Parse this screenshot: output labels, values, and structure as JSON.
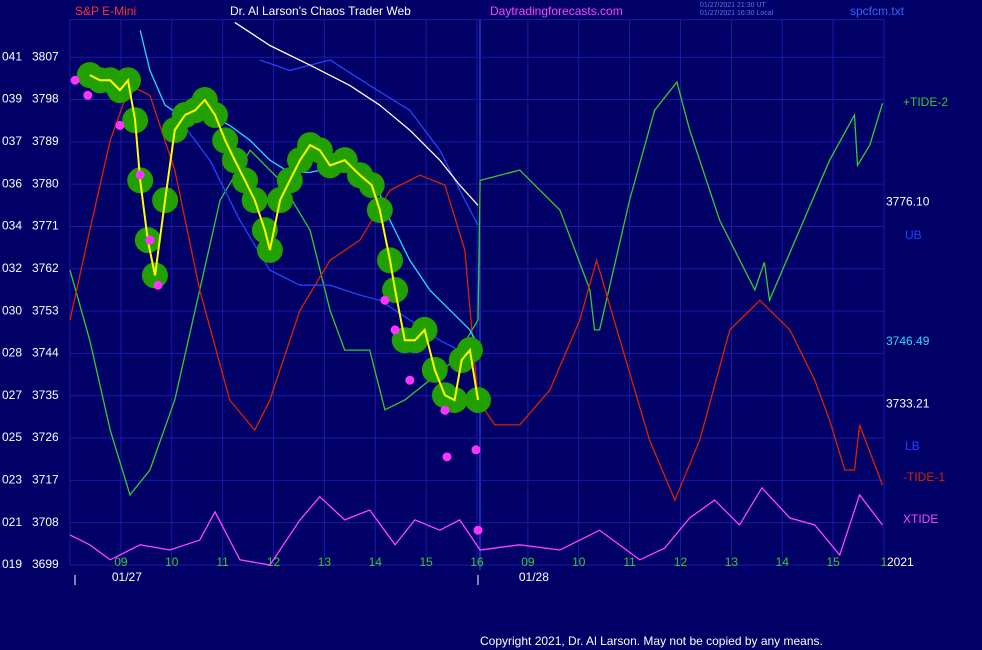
{
  "chart_data": {
    "type": "line",
    "header": {
      "left": "S&P E-Mini",
      "center": "Dr. Al Larson's Chaos Trader Web",
      "site": "Daytradingforecasts.com",
      "stamp1": "01/27/2021 21:30 UT",
      "stamp2": "01/27/2021 16:30 Local",
      "file": "spcfcm.txt"
    },
    "footer": "Copyright 2021, Dr. Al Larson. May not be copied by any means.",
    "xlim": [
      0,
      16
    ],
    "ylim": [
      3699,
      3815
    ],
    "yticks": [
      3699,
      3708,
      3717,
      3726,
      3735,
      3744,
      3753,
      3762,
      3771,
      3780,
      3789,
      3798,
      3807
    ],
    "ytick_prefixes": [
      "019",
      "021",
      "023",
      "025",
      "027",
      "028",
      "030",
      "032",
      "034",
      "036",
      "037",
      "039",
      "041"
    ],
    "xticks": [
      {
        "value": 1,
        "label": "09"
      },
      {
        "value": 2,
        "label": "10"
      },
      {
        "value": 3,
        "label": "11"
      },
      {
        "value": 4,
        "label": "12"
      },
      {
        "value": 5,
        "label": "13"
      },
      {
        "value": 6,
        "label": "14"
      },
      {
        "value": 7,
        "label": "15"
      },
      {
        "value": 8,
        "label": "16"
      },
      {
        "value": 9,
        "label": "09"
      },
      {
        "value": 10,
        "label": "10"
      },
      {
        "value": 11,
        "label": "11"
      },
      {
        "value": 12,
        "label": "12"
      },
      {
        "value": 13,
        "label": "13"
      },
      {
        "value": 14,
        "label": "14"
      },
      {
        "value": 15,
        "label": "15"
      },
      {
        "value": 16,
        "label": "1"
      }
    ],
    "date_labels": [
      {
        "value": 1,
        "label": "01/27"
      },
      {
        "value": 9,
        "label": "01/28"
      }
    ],
    "year_label": "2021",
    "grid": true,
    "series": [
      {
        "name": "+TIDE-2",
        "color": "#33cc33",
        "x": [
          0,
          0.39,
          0.79,
          1.18,
          1.57,
          2.06,
          2.55,
          2.95,
          3.54,
          4.13,
          4.72,
          5.11,
          5.4,
          5.89,
          6.19,
          6.58,
          7.07,
          7.56,
          8.02,
          8.06,
          8.84,
          9.63,
          10.22,
          10.31,
          10.41,
          11.0,
          11.49,
          11.93,
          12.18,
          12.77,
          13.46,
          13.65,
          13.75,
          14.34,
          14.93,
          15.42,
          15.48,
          15.72,
          15.97
        ],
        "values": [
          3761.7,
          3746.8,
          3727.7,
          3713.9,
          3719.2,
          3734.1,
          3757.5,
          3776.6,
          3787.2,
          3780.8,
          3770.2,
          3753.2,
          3744.7,
          3744.7,
          3732.0,
          3734.1,
          3738.3,
          3742.6,
          3751.1,
          3780.8,
          3783.0,
          3774.5,
          3757.5,
          3749.0,
          3749.0,
          3776.6,
          3795.7,
          3801.7,
          3791.5,
          3772.3,
          3757.5,
          3763.4,
          3755.3,
          3770.2,
          3785.1,
          3794.7,
          3784.0,
          3788.3,
          3797.2
        ]
      },
      {
        "name": "-TIDE-1",
        "color": "#dd2200",
        "x": [
          0,
          0.39,
          0.79,
          1.18,
          1.57,
          2.06,
          2.55,
          3.14,
          3.63,
          3.93,
          4.52,
          5.11,
          5.7,
          6.29,
          6.88,
          7.37,
          7.76,
          8.02,
          8.35,
          8.84,
          9.43,
          10.02,
          10.35,
          10.81,
          11.39,
          11.89,
          12.38,
          12.97,
          13.56,
          14.15,
          14.64,
          14.93,
          15.23,
          15.42,
          15.52,
          15.97
        ],
        "values": [
          3751.1,
          3770.2,
          3789.3,
          3801.0,
          3798.9,
          3783.0,
          3757.5,
          3734.1,
          3727.7,
          3734.1,
          3753.2,
          3763.8,
          3768.1,
          3778.7,
          3781.9,
          3779.8,
          3766.0,
          3734.1,
          3728.8,
          3728.8,
          3736.2,
          3751.1,
          3763.8,
          3746.8,
          3725.6,
          3712.8,
          3725.6,
          3749.0,
          3755.3,
          3749.0,
          3738.3,
          3729.8,
          3719.2,
          3719.2,
          3728.8,
          3716.0
        ]
      },
      {
        "name": "XTIDE",
        "color": "#ff44ff",
        "x": [
          0,
          0.39,
          0.79,
          1.38,
          1.96,
          2.55,
          2.85,
          3.34,
          3.93,
          4.52,
          4.91,
          5.4,
          5.89,
          6.39,
          6.78,
          7.27,
          7.66,
          8.06,
          8.84,
          9.63,
          10.41,
          11.2,
          11.69,
          12.18,
          12.67,
          13.16,
          13.6,
          14.15,
          14.64,
          15.13,
          15.52,
          15.97
        ],
        "values": [
          3705.4,
          3703.3,
          3700.1,
          3703.3,
          3702.2,
          3704.3,
          3710.3,
          3700.1,
          3699,
          3708.6,
          3713.5,
          3708.6,
          3710.7,
          3703.3,
          3708.6,
          3706.4,
          3708.6,
          3702.2,
          3703.3,
          3702.2,
          3706.4,
          3700.1,
          3702.6,
          3709.0,
          3712.8,
          3707.5,
          3715.4,
          3709.0,
          3707.5,
          3701.1,
          3713.9,
          3707.5
        ]
      },
      {
        "name": "UB",
        "color": "#2244ff",
        "x": [
          3.73,
          4.32,
          5.11,
          5.89,
          6.68,
          7.27,
          7.76,
          8.02
        ],
        "values": [
          3806.4,
          3804.2,
          3806.4,
          3801.0,
          3795.7,
          3787.2,
          3776.6,
          3771.3
        ]
      },
      {
        "name": "LB",
        "color": "#2244ff",
        "x": [
          2.16,
          2.75,
          3.34,
          3.93,
          4.52,
          5.11,
          5.7,
          6.09,
          6.68,
          7.27,
          8.02
        ],
        "values": [
          3793.6,
          3785.1,
          3772.3,
          3761.7,
          3758.5,
          3758.5,
          3756.4,
          3755.3,
          3751.1,
          3746.8,
          3742.6
        ]
      },
      {
        "color": "#ffffff",
        "x": [
          3.24,
          3.93,
          4.72,
          5.5,
          6.09,
          6.68,
          7.27,
          7.66,
          8.02
        ],
        "values": [
          3814.4,
          3809.5,
          3805.3,
          3801.0,
          3796.8,
          3791.5,
          3785.1,
          3779.8,
          3775.5
        ]
      },
      {
        "color": "#22ddff",
        "x": [
          1.38,
          1.57,
          1.87,
          2.26,
          2.75,
          3.14,
          3.54,
          3.93,
          4.32,
          4.72,
          5.11,
          5.6,
          5.99,
          6.29,
          6.68,
          7.07,
          7.47,
          7.86,
          8.02
        ],
        "values": [
          3812.7,
          3804.2,
          3796.8,
          3794.0,
          3794.7,
          3792.5,
          3789.3,
          3785.1,
          3782.5,
          3782.5,
          3783.4,
          3783.0,
          3780.8,
          3772.3,
          3763.8,
          3757.5,
          3753.2,
          3749.0,
          3745.8
        ]
      },
      {
        "color": "#ffff00",
        "marker": "circle",
        "marker_color": "#22a000",
        "x": [
          0.39,
          0.59,
          0.79,
          0.98,
          1.14,
          1.28,
          1.38,
          1.53,
          1.67,
          1.87,
          2.06,
          2.26,
          2.46,
          2.65,
          2.85,
          3.05,
          3.24,
          3.44,
          3.63,
          3.83,
          3.93,
          4.13,
          4.32,
          4.52,
          4.72,
          4.91,
          5.11,
          5.4,
          5.7,
          5.93,
          6.09,
          6.29,
          6.39,
          6.58,
          6.78,
          6.97,
          7.17,
          7.37,
          7.56,
          7.7,
          7.86,
          8.02
        ],
        "values": [
          3803.2,
          3802.1,
          3802.1,
          3800.0,
          3802.1,
          3793.6,
          3780.8,
          3768.1,
          3760.6,
          3776.6,
          3791.5,
          3794.7,
          3795.7,
          3797.9,
          3794.7,
          3789.3,
          3785.1,
          3780.8,
          3776.6,
          3770.2,
          3766.0,
          3776.6,
          3780.8,
          3785.1,
          3788.3,
          3787.2,
          3784.0,
          3785.1,
          3781.9,
          3779.8,
          3774.5,
          3763.8,
          3757.5,
          3746.8,
          3746.8,
          3749.0,
          3740.5,
          3735.1,
          3734.1,
          3742.6,
          3744.7,
          3734.1
        ]
      },
      {
        "color": "#ff33ff",
        "marker": "dot",
        "x": [
          0.1,
          0.35,
          0.98,
          1.38,
          1.57,
          1.73,
          6.19,
          6.39,
          6.68,
          7.37,
          7.41,
          7.98,
          8.02
        ],
        "values": [
          3802.1,
          3798.9,
          3792.5,
          3782.0,
          3768.1,
          3758.5,
          3755.3,
          3749.0,
          3738.3,
          3731.9,
          3722.0,
          3723.5,
          3706.4
        ]
      }
    ],
    "levels": [
      {
        "value": 3776.1,
        "label": "3776.10",
        "color": "#ffffff"
      },
      {
        "value": 3746.49,
        "label": "3746.49",
        "color": "#22ddff"
      },
      {
        "value": 3733.21,
        "label": "3733.21",
        "color": "#ffffff"
      }
    ]
  }
}
